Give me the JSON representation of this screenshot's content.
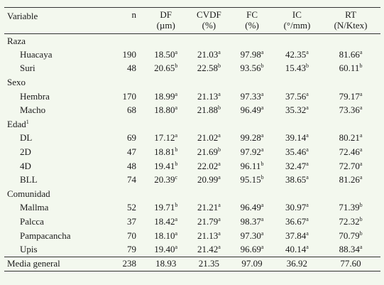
{
  "headers": [
    {
      "l1": "Variable",
      "l2": ""
    },
    {
      "l1": "n",
      "l2": ""
    },
    {
      "l1": "DF",
      "l2": "(µm)"
    },
    {
      "l1": "CVDF",
      "l2": "(%)"
    },
    {
      "l1": "FC",
      "l2": "(%)"
    },
    {
      "l1": "IC",
      "l2": "(°/mm)"
    },
    {
      "l1": "RT",
      "l2": "(N/Ktex)"
    }
  ],
  "groups": [
    {
      "label": "Raza",
      "label_sup": "",
      "rows": [
        {
          "name": "Huacaya",
          "n": "190",
          "df": "18.50",
          "df_sup": "a",
          "cvdf": "21.03",
          "cvdf_sup": "a",
          "fc": "97.98",
          "fc_sup": "a",
          "ic": "42.35",
          "ic_sup": "a",
          "rt": "81.66",
          "rt_sup": "a"
        },
        {
          "name": "Suri",
          "n": "48",
          "df": "20.65",
          "df_sup": "b",
          "cvdf": "22.58",
          "cvdf_sup": "b",
          "fc": "93.56",
          "fc_sup": "b",
          "ic": "15.43",
          "ic_sup": "b",
          "rt": "60.11",
          "rt_sup": "b"
        }
      ]
    },
    {
      "label": "Sexo",
      "label_sup": "",
      "rows": [
        {
          "name": "Hembra",
          "n": "170",
          "df": "18.99",
          "df_sup": "a",
          "cvdf": "21.13",
          "cvdf_sup": "a",
          "fc": "97.33",
          "fc_sup": "a",
          "ic": "37.56",
          "ic_sup": "a",
          "rt": "79.17",
          "rt_sup": "a"
        },
        {
          "name": "Macho",
          "n": "68",
          "df": "18.80",
          "df_sup": "a",
          "cvdf": "21.88",
          "cvdf_sup": "b",
          "fc": "96.49",
          "fc_sup": "a",
          "ic": "35.32",
          "ic_sup": "a",
          "rt": "73.36",
          "rt_sup": "a"
        }
      ]
    },
    {
      "label": "Edad",
      "label_sup": "1",
      "rows": [
        {
          "name": "DL",
          "n": "69",
          "df": "17.12",
          "df_sup": "a",
          "cvdf": "21.02",
          "cvdf_sup": "a",
          "fc": "99.28",
          "fc_sup": "a",
          "ic": "39.14",
          "ic_sup": "a",
          "rt": "80.21",
          "rt_sup": "a"
        },
        {
          "name": "2D",
          "n": "47",
          "df": "18.81",
          "df_sup": "b",
          "cvdf": "21.69",
          "cvdf_sup": "b",
          "fc": "97.92",
          "fc_sup": "a",
          "ic": "35.46",
          "ic_sup": "a",
          "rt": "72.46",
          "rt_sup": "a"
        },
        {
          "name": "4D",
          "n": "48",
          "df": "19.41",
          "df_sup": "b",
          "cvdf": "22.02",
          "cvdf_sup": "a",
          "fc": "96.11",
          "fc_sup": "b",
          "ic": "32.47",
          "ic_sup": "a",
          "rt": "72.70",
          "rt_sup": "a"
        },
        {
          "name": "BLL",
          "n": "74",
          "df": "20.39",
          "df_sup": "c",
          "cvdf": "20.99",
          "cvdf_sup": "a",
          "fc": "95.15",
          "fc_sup": "b",
          "ic": "38.65",
          "ic_sup": "a",
          "rt": "81.26",
          "rt_sup": "a"
        }
      ]
    },
    {
      "label": "Comunidad",
      "label_sup": "",
      "rows": [
        {
          "name": "Mallma",
          "n": "52",
          "df": "19.71",
          "df_sup": "b",
          "cvdf": "21.21",
          "cvdf_sup": "a",
          "fc": "96.49",
          "fc_sup": "a",
          "ic": "30.97",
          "ic_sup": "a",
          "rt": "71.39",
          "rt_sup": "b"
        },
        {
          "name": "Palcca",
          "n": "37",
          "df": "18.42",
          "df_sup": "a",
          "cvdf": "21.79",
          "cvdf_sup": "a",
          "fc": "98.37",
          "fc_sup": "a",
          "ic": "36.67",
          "ic_sup": "a",
          "rt": "72.32",
          "rt_sup": "b"
        },
        {
          "name": "Pampacancha",
          "n": "70",
          "df": "18.10",
          "df_sup": "a",
          "cvdf": "21.13",
          "cvdf_sup": "a",
          "fc": "97.30",
          "fc_sup": "a",
          "ic": "37.84",
          "ic_sup": "a",
          "rt": "70.79",
          "rt_sup": "b"
        },
        {
          "name": "Upis",
          "n": "79",
          "df": "19.40",
          "df_sup": "a",
          "cvdf": "21.42",
          "cvdf_sup": "a",
          "fc": "96.69",
          "fc_sup": "a",
          "ic": "40.14",
          "ic_sup": "a",
          "rt": "88.34",
          "rt_sup": "a"
        }
      ]
    }
  ],
  "footer": {
    "name": "Media general",
    "n": "238",
    "df": "18.93",
    "cvdf": "21.35",
    "fc": "97.09",
    "ic": "36.92",
    "rt": "77.60"
  }
}
